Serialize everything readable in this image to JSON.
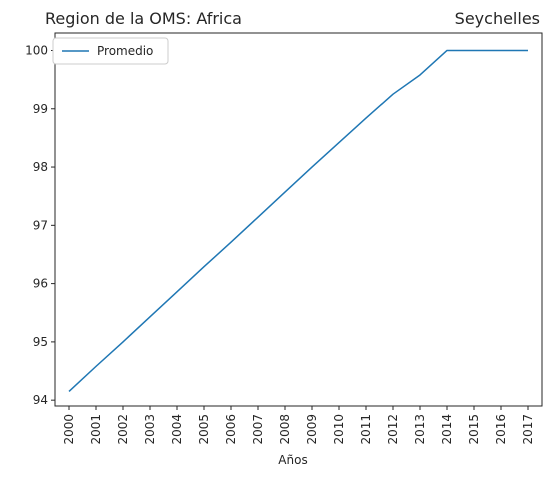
{
  "chart_data": {
    "type": "line",
    "title_left": "Region de la OMS: Africa",
    "title_right": "Seychelles",
    "xlabel": "Años",
    "ylabel": "",
    "x": [
      "2000",
      "2001",
      "2002",
      "2003",
      "2004",
      "2005",
      "2006",
      "2007",
      "2008",
      "2009",
      "2010",
      "2011",
      "2012",
      "2013",
      "2014",
      "2015",
      "2016",
      "2017"
    ],
    "series": [
      {
        "name": "Promedio",
        "color": "#1f77b4",
        "values": [
          94.15,
          94.58,
          95.0,
          95.43,
          95.86,
          96.29,
          96.71,
          97.14,
          97.57,
          98.0,
          98.42,
          98.84,
          99.25,
          99.58,
          100.0,
          100.0,
          100.0,
          100.0
        ]
      }
    ],
    "yticks": [
      94,
      95,
      96,
      97,
      98,
      99,
      100
    ],
    "ylim": [
      93.9,
      100.3
    ],
    "grid": false,
    "legend": "top-left"
  }
}
